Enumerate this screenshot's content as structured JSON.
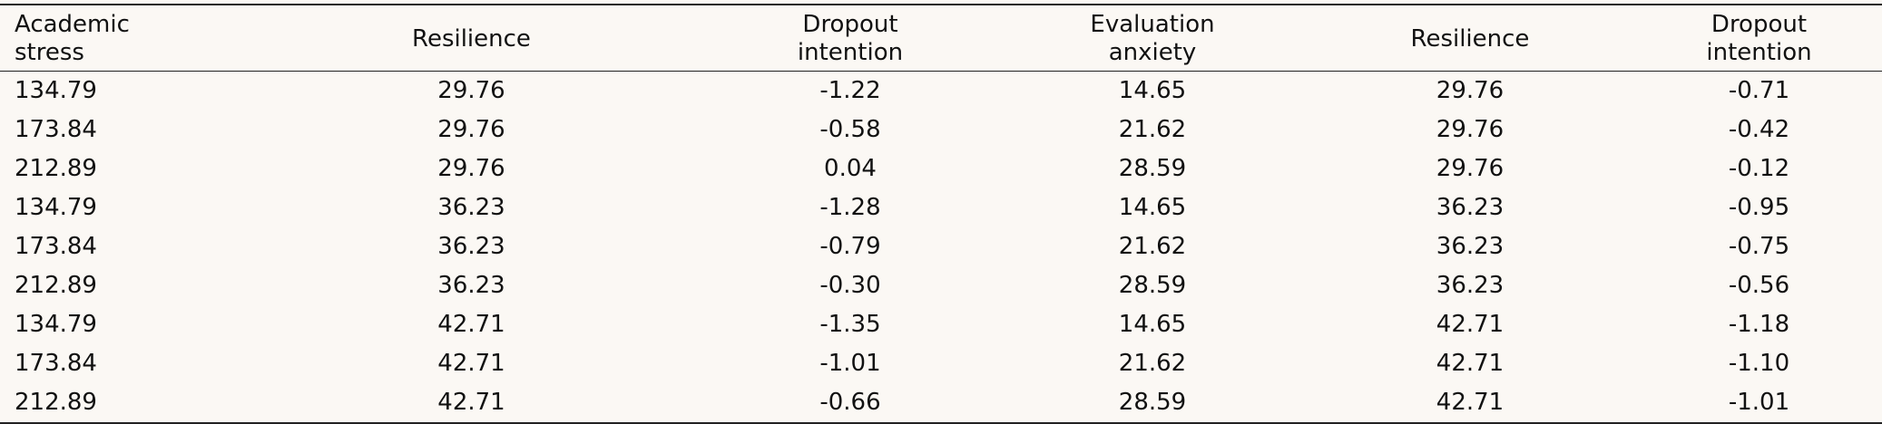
{
  "table": {
    "headers": [
      "Academic\nstress",
      "Resilience",
      "Dropout\nintention",
      "Evaluation\nanxiety",
      "Resilience",
      "Dropout\nintention"
    ],
    "rows": [
      [
        "134.79",
        "29.76",
        "-1.22",
        "14.65",
        "29.76",
        "-0.71"
      ],
      [
        "173.84",
        "29.76",
        "-0.58",
        "21.62",
        "29.76",
        "-0.42"
      ],
      [
        "212.89",
        "29.76",
        "0.04",
        "28.59",
        "29.76",
        "-0.12"
      ],
      [
        "134.79",
        "36.23",
        "-1.28",
        "14.65",
        "36.23",
        "-0.95"
      ],
      [
        "173.84",
        "36.23",
        "-0.79",
        "21.62",
        "36.23",
        "-0.75"
      ],
      [
        "212.89",
        "36.23",
        "-0.30",
        "28.59",
        "36.23",
        "-0.56"
      ],
      [
        "134.79",
        "42.71",
        "-1.35",
        "14.65",
        "42.71",
        "-1.18"
      ],
      [
        "173.84",
        "42.71",
        "-1.01",
        "21.62",
        "42.71",
        "-1.10"
      ],
      [
        "212.89",
        "42.71",
        "-0.66",
        "28.59",
        "42.71",
        "-1.01"
      ]
    ]
  }
}
